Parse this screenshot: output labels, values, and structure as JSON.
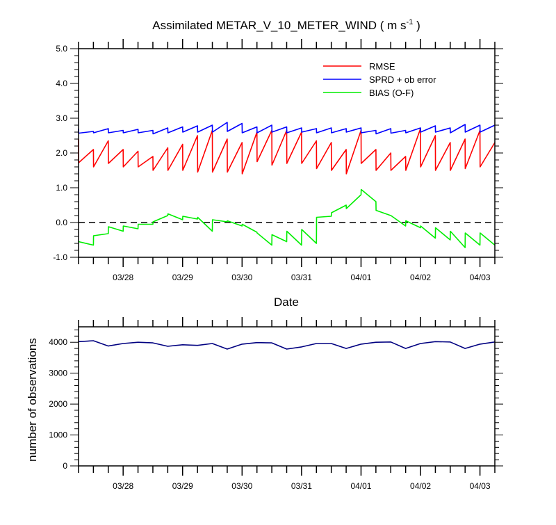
{
  "chart_data": [
    {
      "type": "line",
      "title": "Assimilated METAR_V_10_METER_WIND",
      "units_prefix": "( m s",
      "units_exponent": "-1",
      "units_suffix": ")",
      "xlabel": "Date",
      "ylabel": "",
      "ylim": [
        -1.0,
        5.0
      ],
      "xlim": [
        0,
        28
      ],
      "yticks": [
        -1.0,
        0.0,
        1.0,
        2.0,
        3.0,
        4.0,
        5.0
      ],
      "yticklabels": [
        "-1.0",
        "0.0",
        "1.0",
        "2.0",
        "3.0",
        "4.0",
        "5.0"
      ],
      "xticks": [
        3,
        7,
        11,
        15,
        19,
        23,
        27
      ],
      "xticklabels": [
        "03/28",
        "03/29",
        "03/30",
        "03/31",
        "04/01",
        "04/02",
        "04/03"
      ],
      "zero_line": true,
      "legend_position": "top-right",
      "series": [
        {
          "name": "RMSE",
          "color": "#ff0000",
          "x": [
            0,
            0.01,
            1,
            1.01,
            2,
            2.01,
            3,
            3.01,
            4,
            4.01,
            5,
            5.01,
            6,
            6.01,
            7,
            7.01,
            8,
            8.01,
            9,
            9.01,
            10,
            10.01,
            11,
            11.01,
            12,
            12.01,
            13,
            13.01,
            14,
            14.01,
            15,
            15.01,
            16,
            16.01,
            17,
            17.01,
            18,
            18.01,
            19,
            19.01,
            20,
            20.01,
            21,
            21.01,
            22,
            22.01,
            23,
            23.01,
            24,
            24.01,
            25,
            25.01,
            26,
            26.01,
            27,
            27.01,
            28
          ],
          "y": [
            2.4,
            1.72,
            2.1,
            1.6,
            2.35,
            1.7,
            2.1,
            1.6,
            2.05,
            1.6,
            1.9,
            1.5,
            2.15,
            1.5,
            2.25,
            1.5,
            2.5,
            1.45,
            2.65,
            1.45,
            2.4,
            1.45,
            2.3,
            1.4,
            2.6,
            1.75,
            2.65,
            1.65,
            2.65,
            1.7,
            2.6,
            1.7,
            2.35,
            1.55,
            2.3,
            1.5,
            2.1,
            1.4,
            2.65,
            1.7,
            2.1,
            1.5,
            2.0,
            1.5,
            1.9,
            1.5,
            2.7,
            1.6,
            2.5,
            1.5,
            2.3,
            1.5,
            2.4,
            1.55,
            2.65,
            1.6,
            2.3
          ]
        },
        {
          "name": "SPRD + ob error",
          "color": "#0000ff",
          "x": [
            0,
            0.01,
            1,
            1.01,
            2,
            2.01,
            3,
            3.01,
            4,
            4.01,
            5,
            5.01,
            6,
            6.01,
            7,
            7.01,
            8,
            8.01,
            9,
            9.01,
            10,
            10.01,
            11,
            11.01,
            12,
            12.01,
            13,
            13.01,
            14,
            14.01,
            15,
            15.01,
            16,
            16.01,
            17,
            17.01,
            18,
            18.01,
            19,
            19.01,
            20,
            20.01,
            21,
            21.01,
            22,
            22.01,
            23,
            23.01,
            24,
            24.01,
            25,
            25.01,
            26,
            26.01,
            27,
            27.01,
            28
          ],
          "y": [
            2.7,
            2.57,
            2.62,
            2.58,
            2.7,
            2.58,
            2.65,
            2.58,
            2.68,
            2.58,
            2.65,
            2.55,
            2.72,
            2.58,
            2.75,
            2.6,
            2.78,
            2.6,
            2.8,
            2.6,
            2.88,
            2.62,
            2.85,
            2.58,
            2.75,
            2.58,
            2.8,
            2.6,
            2.75,
            2.58,
            2.72,
            2.6,
            2.7,
            2.58,
            2.72,
            2.58,
            2.7,
            2.6,
            2.72,
            2.58,
            2.65,
            2.55,
            2.7,
            2.57,
            2.65,
            2.58,
            2.72,
            2.6,
            2.78,
            2.6,
            2.72,
            2.58,
            2.82,
            2.6,
            2.8,
            2.6,
            2.8
          ]
        },
        {
          "name": "BIAS (O-F)",
          "color": "#00ee00",
          "x": [
            0,
            1,
            1.01,
            2,
            2.01,
            3,
            3.01,
            4,
            4.01,
            5,
            5.01,
            6,
            6.01,
            7,
            7.01,
            8,
            8.01,
            9,
            9.01,
            10,
            10.01,
            11,
            11.01,
            12,
            12.01,
            13,
            13.01,
            14,
            14.01,
            15,
            15.01,
            16,
            16.01,
            17,
            17.01,
            18,
            18.01,
            19,
            19.01,
            20,
            20.01,
            21,
            21.01,
            22,
            22.01,
            23,
            23.01,
            24,
            24.01,
            25,
            25.01,
            26,
            26.01,
            27,
            27.01,
            28
          ],
          "y": [
            -0.55,
            -0.65,
            -0.38,
            -0.32,
            -0.12,
            -0.25,
            -0.1,
            -0.18,
            -0.05,
            -0.05,
            0.02,
            0.2,
            0.25,
            0.08,
            0.18,
            0.1,
            0.15,
            -0.25,
            0.08,
            0.02,
            0.05,
            -0.1,
            -0.05,
            -0.28,
            -0.3,
            -0.65,
            -0.35,
            -0.55,
            -0.25,
            -0.65,
            -0.2,
            -0.6,
            0.15,
            0.18,
            0.28,
            0.5,
            0.4,
            0.8,
            0.95,
            0.6,
            0.35,
            0.2,
            0.2,
            -0.1,
            0.05,
            -0.15,
            -0.1,
            -0.45,
            -0.15,
            -0.5,
            -0.25,
            -0.72,
            -0.3,
            -0.65,
            -0.3,
            -0.65
          ]
        }
      ]
    },
    {
      "type": "line",
      "title": "",
      "xlabel": "",
      "ylabel": "number of observations",
      "ylim": [
        0,
        4500
      ],
      "xlim": [
        0,
        28
      ],
      "yticks": [
        0,
        1000,
        2000,
        3000,
        4000
      ],
      "yticklabels": [
        "0",
        "1000",
        "2000",
        "3000",
        "4000"
      ],
      "xticks": [
        3,
        7,
        11,
        15,
        19,
        23,
        27
      ],
      "xticklabels": [
        "03/28",
        "03/29",
        "03/30",
        "03/31",
        "04/01",
        "04/02",
        "04/03"
      ],
      "series": [
        {
          "name": "observations",
          "color": "#000080",
          "x": [
            0,
            1,
            2,
            3,
            4,
            5,
            6,
            7,
            8,
            9,
            10,
            11,
            12,
            13,
            14,
            15,
            16,
            17,
            18,
            19,
            20,
            21,
            22,
            23,
            24,
            25,
            26,
            27,
            28
          ],
          "y": [
            4020,
            4050,
            3880,
            3960,
            4000,
            3980,
            3870,
            3920,
            3900,
            3960,
            3780,
            3940,
            3990,
            3980,
            3780,
            3850,
            3960,
            3960,
            3800,
            3940,
            4000,
            4010,
            3800,
            3960,
            4020,
            4010,
            3800,
            3940,
            4010
          ]
        }
      ]
    }
  ]
}
